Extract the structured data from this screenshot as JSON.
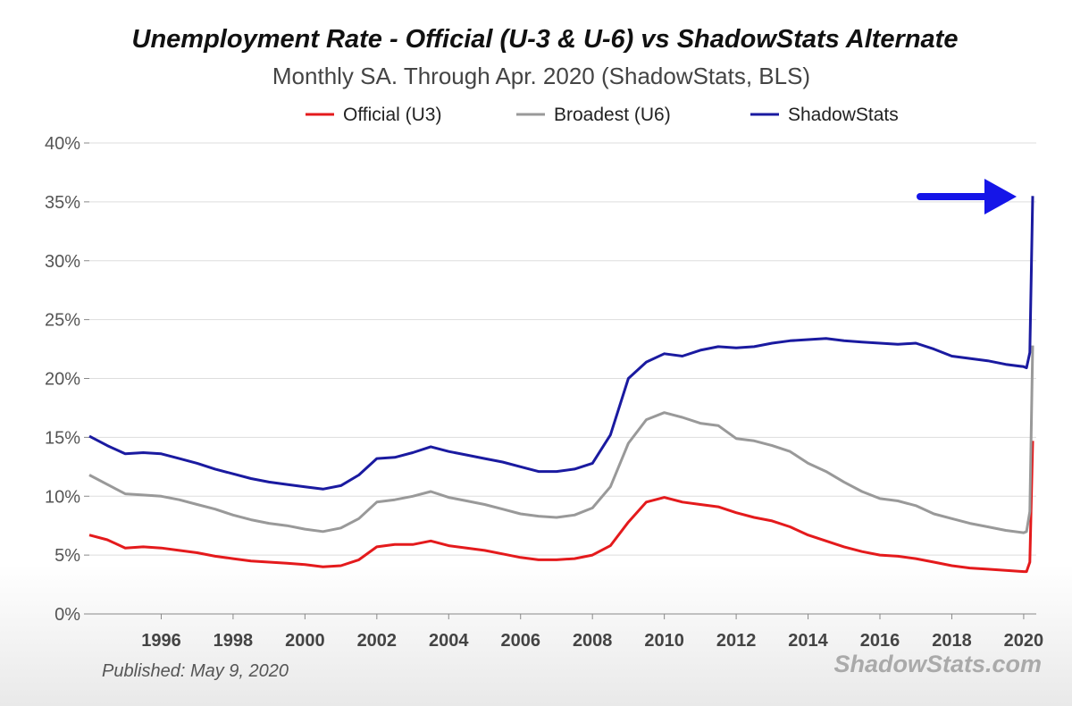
{
  "chart_data": {
    "type": "line",
    "title": "Unemployment Rate - Official (U-3 & U-6) vs ShadowStats Alternate",
    "subtitle": "Monthly SA. Through Apr. 2020  (ShadowStats, BLS)",
    "ylim": [
      0,
      40
    ],
    "xlim": [
      1994.0,
      2020.35
    ],
    "y_ticks": [
      0,
      5,
      10,
      15,
      20,
      25,
      30,
      35,
      40
    ],
    "y_tick_labels": [
      "0%",
      "5%",
      "10%",
      "15%",
      "20%",
      "25%",
      "30%",
      "35%",
      "40%"
    ],
    "x_ticks": [
      1996,
      1998,
      2000,
      2002,
      2004,
      2006,
      2008,
      2010,
      2012,
      2014,
      2016,
      2018,
      2020
    ],
    "x_tick_labels": [
      "1996",
      "1998",
      "2000",
      "2002",
      "2004",
      "2006",
      "2008",
      "2010",
      "2012",
      "2014",
      "2016",
      "2018",
      "2020"
    ],
    "grid": "horizontal",
    "legend_position": "top",
    "series": [
      {
        "name": "Official (U3)",
        "color": "#e41a1c",
        "x": [
          1994.0,
          1994.5,
          1995.0,
          1995.5,
          1996.0,
          1996.5,
          1997.0,
          1997.5,
          1998.0,
          1998.5,
          1999.0,
          1999.5,
          2000.0,
          2000.5,
          2001.0,
          2001.5,
          2002.0,
          2002.5,
          2003.0,
          2003.5,
          2004.0,
          2004.5,
          2005.0,
          2005.5,
          2006.0,
          2006.5,
          2007.0,
          2007.5,
          2008.0,
          2008.5,
          2009.0,
          2009.5,
          2010.0,
          2010.5,
          2011.0,
          2011.5,
          2012.0,
          2012.5,
          2013.0,
          2013.5,
          2014.0,
          2014.5,
          2015.0,
          2015.5,
          2016.0,
          2016.5,
          2017.0,
          2017.5,
          2018.0,
          2018.5,
          2019.0,
          2019.5,
          2020.0,
          2020.08,
          2020.17,
          2020.25
        ],
        "values": [
          6.7,
          6.3,
          5.6,
          5.7,
          5.6,
          5.4,
          5.2,
          4.9,
          4.7,
          4.5,
          4.4,
          4.3,
          4.2,
          4.0,
          4.1,
          4.6,
          5.7,
          5.9,
          5.9,
          6.2,
          5.8,
          5.6,
          5.4,
          5.1,
          4.8,
          4.6,
          4.6,
          4.7,
          5.0,
          5.8,
          7.8,
          9.5,
          9.9,
          9.5,
          9.3,
          9.1,
          8.6,
          8.2,
          7.9,
          7.4,
          6.7,
          6.2,
          5.7,
          5.3,
          5.0,
          4.9,
          4.7,
          4.4,
          4.1,
          3.9,
          3.8,
          3.7,
          3.6,
          3.6,
          4.4,
          14.7
        ]
      },
      {
        "name": "Broadest (U6)",
        "color": "#999999",
        "x": [
          1994.0,
          1994.5,
          1995.0,
          1995.5,
          1996.0,
          1996.5,
          1997.0,
          1997.5,
          1998.0,
          1998.5,
          1999.0,
          1999.5,
          2000.0,
          2000.5,
          2001.0,
          2001.5,
          2002.0,
          2002.5,
          2003.0,
          2003.5,
          2004.0,
          2004.5,
          2005.0,
          2005.5,
          2006.0,
          2006.5,
          2007.0,
          2007.5,
          2008.0,
          2008.5,
          2009.0,
          2009.5,
          2010.0,
          2010.5,
          2011.0,
          2011.5,
          2012.0,
          2012.5,
          2013.0,
          2013.5,
          2014.0,
          2014.5,
          2015.0,
          2015.5,
          2016.0,
          2016.5,
          2017.0,
          2017.5,
          2018.0,
          2018.5,
          2019.0,
          2019.5,
          2020.0,
          2020.08,
          2020.17,
          2020.25
        ],
        "values": [
          11.8,
          11.0,
          10.2,
          10.1,
          10.0,
          9.7,
          9.3,
          8.9,
          8.4,
          8.0,
          7.7,
          7.5,
          7.2,
          7.0,
          7.3,
          8.1,
          9.5,
          9.7,
          10.0,
          10.4,
          9.9,
          9.6,
          9.3,
          8.9,
          8.5,
          8.3,
          8.2,
          8.4,
          9.0,
          10.8,
          14.5,
          16.5,
          17.1,
          16.7,
          16.2,
          16.0,
          14.9,
          14.7,
          14.3,
          13.8,
          12.8,
          12.1,
          11.2,
          10.4,
          9.8,
          9.6,
          9.2,
          8.5,
          8.1,
          7.7,
          7.4,
          7.1,
          6.9,
          7.0,
          8.7,
          22.8
        ]
      },
      {
        "name": "ShadowStats",
        "color": "#1a1aa0",
        "x": [
          1994.0,
          1994.5,
          1995.0,
          1995.5,
          1996.0,
          1996.5,
          1997.0,
          1997.5,
          1998.0,
          1998.5,
          1999.0,
          1999.5,
          2000.0,
          2000.5,
          2001.0,
          2001.5,
          2002.0,
          2002.5,
          2003.0,
          2003.5,
          2004.0,
          2004.5,
          2005.0,
          2005.5,
          2006.0,
          2006.5,
          2007.0,
          2007.5,
          2008.0,
          2008.5,
          2009.0,
          2009.5,
          2010.0,
          2010.5,
          2011.0,
          2011.5,
          2012.0,
          2012.5,
          2013.0,
          2013.5,
          2014.0,
          2014.5,
          2015.0,
          2015.5,
          2016.0,
          2016.5,
          2017.0,
          2017.5,
          2018.0,
          2018.5,
          2019.0,
          2019.5,
          2020.0,
          2020.08,
          2020.17,
          2020.25
        ],
        "values": [
          15.1,
          14.3,
          13.6,
          13.7,
          13.6,
          13.2,
          12.8,
          12.3,
          11.9,
          11.5,
          11.2,
          11.0,
          10.8,
          10.6,
          10.9,
          11.8,
          13.2,
          13.3,
          13.7,
          14.2,
          13.8,
          13.5,
          13.2,
          12.9,
          12.5,
          12.1,
          12.1,
          12.3,
          12.8,
          15.2,
          20.0,
          21.4,
          22.1,
          21.9,
          22.4,
          22.7,
          22.6,
          22.7,
          23.0,
          23.2,
          23.3,
          23.4,
          23.2,
          23.1,
          23.0,
          22.9,
          23.0,
          22.5,
          21.9,
          21.7,
          21.5,
          21.2,
          21.0,
          20.9,
          22.2,
          35.5
        ]
      }
    ]
  },
  "annotations": {
    "published": "Published: May 9, 2020",
    "brand": "ShadowStats.com",
    "arrow_color": "#1515e8"
  }
}
